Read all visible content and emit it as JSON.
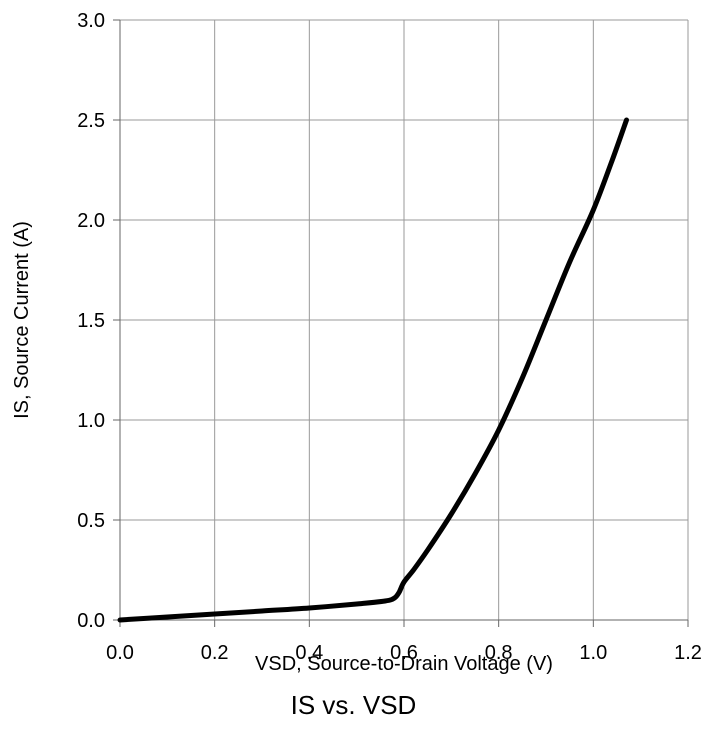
{
  "chart_data": {
    "type": "line",
    "title": "",
    "xlabel": "VSD, Source-to-Drain Voltage (V)",
    "ylabel": "IS, Source Current (A)",
    "xlim": [
      0.0,
      1.2
    ],
    "ylim": [
      0.0,
      3.0
    ],
    "x_ticks": [
      "0.0",
      "0.2",
      "0.4",
      "0.6",
      "0.8",
      "1.0",
      "1.2"
    ],
    "y_ticks": [
      "0.0",
      "0.5",
      "1.0",
      "1.5",
      "2.0",
      "2.5",
      "3.0"
    ],
    "grid": true,
    "legend": "none",
    "colors": {
      "line": "#000000",
      "grid": "#999999",
      "axis": "#666666"
    },
    "series": [
      {
        "x": [
          0.0,
          0.1,
          0.2,
          0.3,
          0.4,
          0.5,
          0.56,
          0.58,
          0.59,
          0.6,
          0.62,
          0.65,
          0.7,
          0.75,
          0.8,
          0.85,
          0.9,
          0.95,
          1.0,
          1.04,
          1.07
        ],
        "y": [
          0.0,
          0.015,
          0.03,
          0.045,
          0.06,
          0.08,
          0.095,
          0.11,
          0.14,
          0.19,
          0.25,
          0.35,
          0.53,
          0.73,
          0.95,
          1.21,
          1.5,
          1.79,
          2.05,
          2.3,
          2.5
        ]
      }
    ]
  },
  "caption": "IS vs. VSD"
}
